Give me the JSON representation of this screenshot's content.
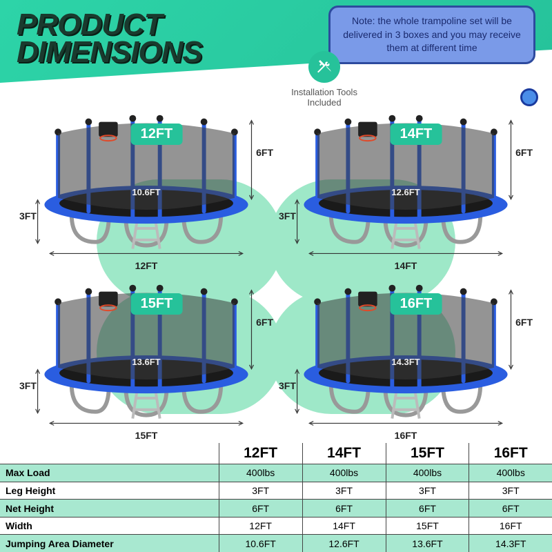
{
  "title_line1": "PRODUCT",
  "title_line2": "DIMENSIONS",
  "note_text": "Note: the whole trampoline set will be delivered in 3 boxes and you may receive them at different time",
  "tools_label": "Installation Tools Included",
  "colors": {
    "accent": "#26c29a",
    "mint_light": "#9ee8c8",
    "table_mint": "#a8e8d0",
    "note_bg": "#7a9ae8",
    "note_border": "#2d4a9e",
    "tramp_blue": "#2a5de0",
    "net_gray": "#4a4a4a"
  },
  "trampolines": [
    {
      "size": "12FT",
      "inner_width": "10.6FT",
      "net_height": "6FT",
      "leg_height": "3FT",
      "base_width": "12FT"
    },
    {
      "size": "14FT",
      "inner_width": "12.6FT",
      "net_height": "6FT",
      "leg_height": "3FT",
      "base_width": "14FT"
    },
    {
      "size": "15FT",
      "inner_width": "13.6FT",
      "net_height": "6FT",
      "leg_height": "3FT",
      "base_width": "15FT"
    },
    {
      "size": "16FT",
      "inner_width": "14.3FT",
      "net_height": "6FT",
      "leg_height": "3FT",
      "base_width": "16FT"
    }
  ],
  "table": {
    "headers": [
      "",
      "12FT",
      "14FT",
      "15FT",
      "16FT"
    ],
    "rows": [
      {
        "label": "Max Load",
        "values": [
          "400lbs",
          "400lbs",
          "400lbs",
          "400lbs"
        ],
        "class": "mint"
      },
      {
        "label": "Leg Height",
        "values": [
          "3FT",
          "3FT",
          "3FT",
          "3FT"
        ],
        "class": "white"
      },
      {
        "label": "Net Height",
        "values": [
          "6FT",
          "6FT",
          "6FT",
          "6FT"
        ],
        "class": "mint"
      },
      {
        "label": "Width",
        "values": [
          "12FT",
          "14FT",
          "15FT",
          "16FT"
        ],
        "class": "white"
      },
      {
        "label": "Jumping Area Diameter",
        "values": [
          "10.6FT",
          "12.6FT",
          "13.6FT",
          "14.3FT"
        ],
        "class": "mint"
      }
    ]
  }
}
